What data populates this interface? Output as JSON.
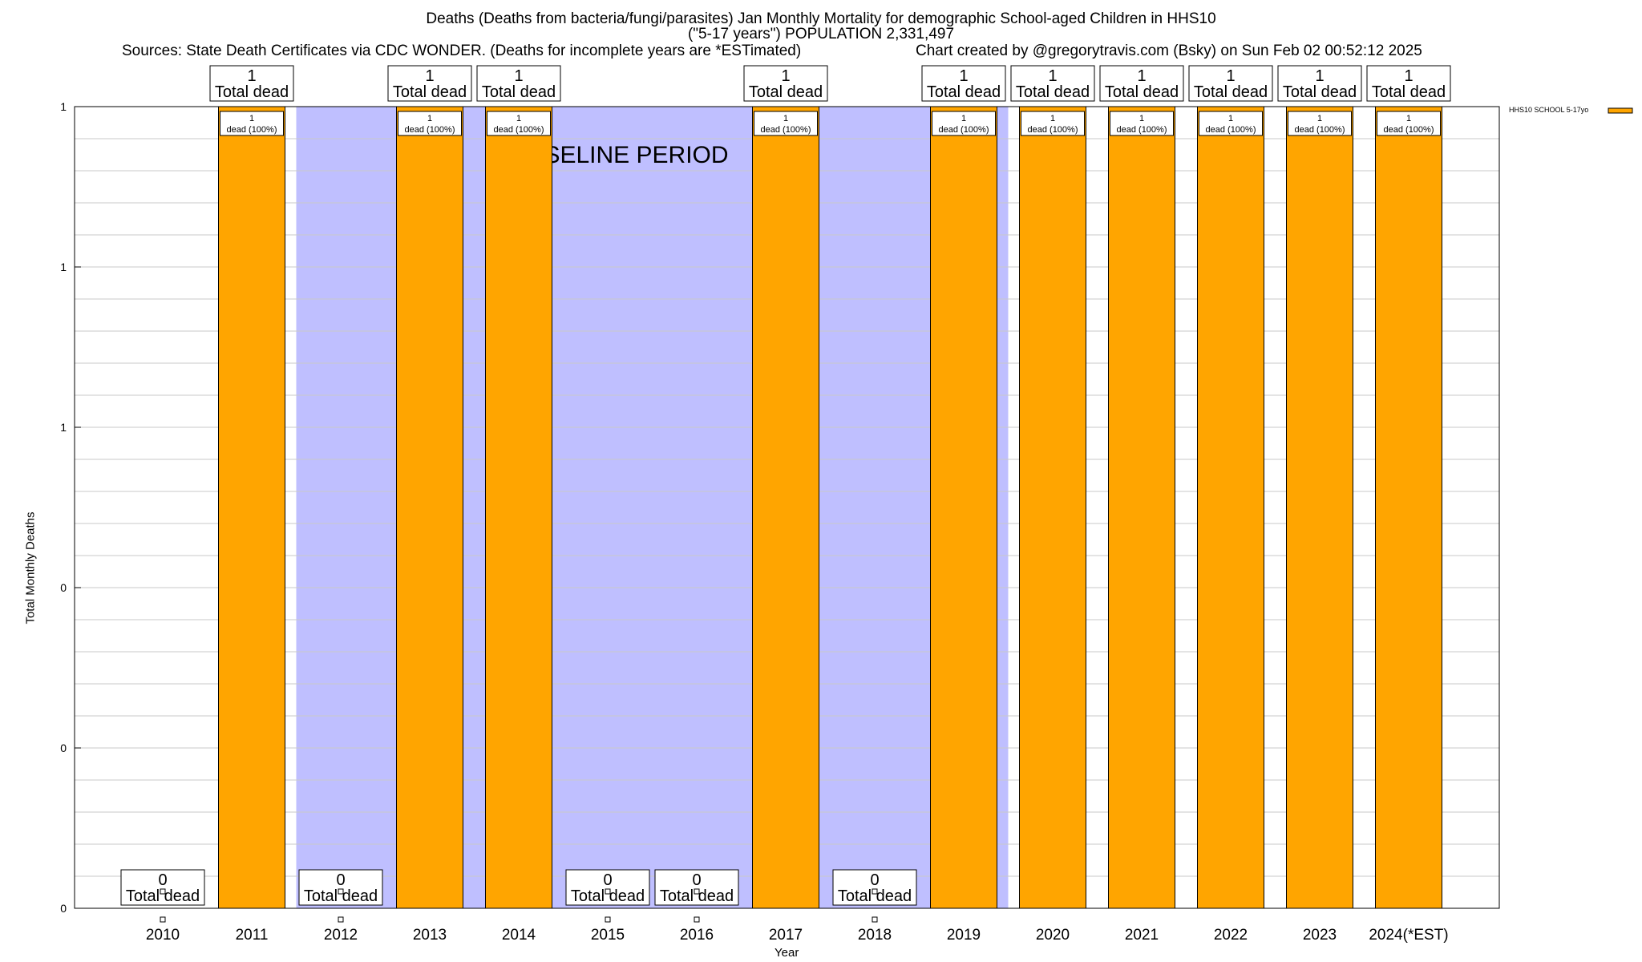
{
  "title_line1": "Deaths (Deaths from bacteria/fungi/parasites) Jan Monthly Mortality for demographic School-aged Children in HHS10",
  "title_line2": "(\"5-17 years\") POPULATION 2,331,497",
  "sources_text": "Sources: State Death Certificates via CDC WONDER. (Deaths for incomplete years are *ESTimated)",
  "credit_text": "Chart created by @gregorytravis.com (Bsky) on Sun Feb 02 00:52:12 2025",
  "baseline_label": "BASELINE PERIOD",
  "colors": {
    "bar": "#FFA500",
    "baseline": "#BFBFFF",
    "grid": "#C8C8C8"
  },
  "chart_data": {
    "type": "bar",
    "xlabel": "Year",
    "ylabel": "Total Monthly Deaths",
    "ylim": [
      0,
      1
    ],
    "y_tick_labels": [
      "0",
      "0",
      "0",
      "1",
      "1",
      "1"
    ],
    "legend": {
      "label": "HHS10 SCHOOL 5-17yo",
      "placement": "top-right"
    },
    "categories": [
      "2010",
      "2011",
      "2012",
      "2013",
      "2014",
      "2015",
      "2016",
      "2017",
      "2018",
      "2019",
      "2020",
      "2021",
      "2022",
      "2023",
      "2024(*EST)"
    ],
    "series": [
      {
        "name": "HHS10 SCHOOL 5-17yo",
        "values": [
          0,
          1,
          0,
          1,
          1,
          0,
          0,
          1,
          0,
          1,
          1,
          1,
          1,
          1,
          1
        ]
      }
    ],
    "total_label_suffix": "Total dead",
    "bar_label_suffix": "dead (100%)",
    "baseline_shading": [
      {
        "from": "2012",
        "to": "2013"
      },
      {
        "from": "2013",
        "to": "2014"
      },
      {
        "from": "2014",
        "to": "2017"
      },
      {
        "from": "2017",
        "to": "2019"
      },
      {
        "from": "2019",
        "to": "2020"
      }
    ]
  }
}
